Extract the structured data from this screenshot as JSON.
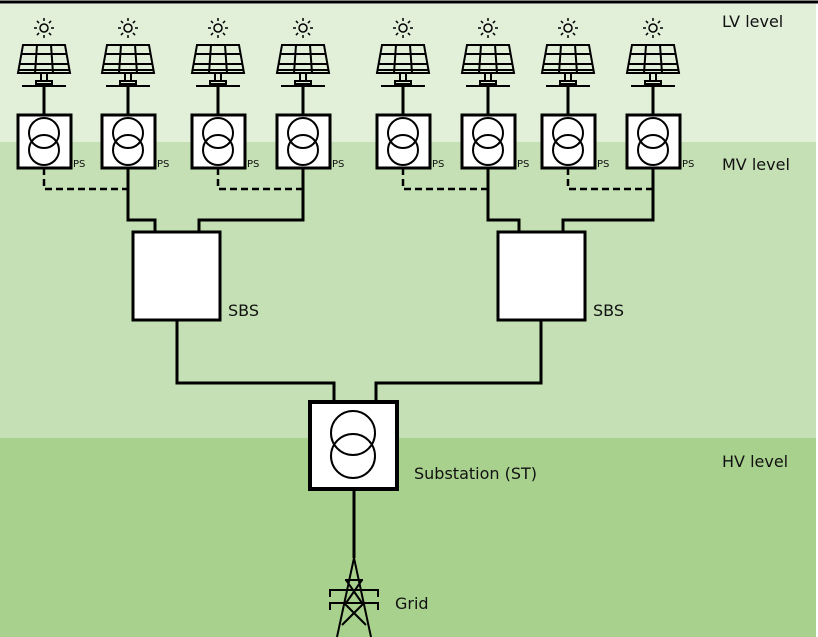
{
  "levels": {
    "lv": "LV level",
    "mv": "MV level",
    "hv": "HV level"
  },
  "ps_label": "PS",
  "sbs_label": "SBS",
  "substation_label": "Substation (ST)",
  "grid_label": "Grid",
  "colors": {
    "lv_band": "#e2efd9",
    "mv_band": "#c5e0b4",
    "hv_band": "#a9d18e",
    "line": "#000000"
  },
  "groups": [
    {
      "sbs": "SBS",
      "units": [
        "PS",
        "PS",
        "PS",
        "PS"
      ]
    },
    {
      "sbs": "SBS",
      "units": [
        "PS",
        "PS",
        "PS",
        "PS"
      ]
    }
  ]
}
